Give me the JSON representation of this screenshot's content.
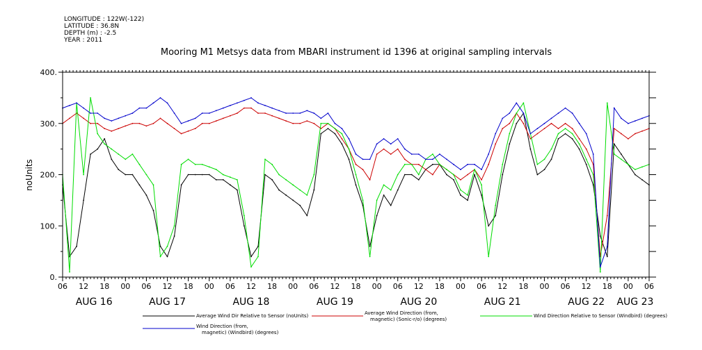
{
  "header": {
    "longitude": "LONGITUDE : 122W(-122)",
    "latitude": "LATITUDE : 36.8N",
    "depth": "DEPTH (m) : -2.5",
    "year": "YEAR : 2011"
  },
  "chart_data": {
    "type": "line",
    "title": "Mooring M1 Metsys data from MBARI instrument id 1396 at original sampling intervals",
    "ylabel": "noUnits",
    "xlabel": "",
    "ylim": [
      0,
      400
    ],
    "yticks": [
      0,
      100,
      200,
      300,
      400
    ],
    "ytick_labels": [
      "0.",
      "100.",
      "200.",
      "300.",
      "400."
    ],
    "xlim": [
      6,
      174
    ],
    "xticks": [
      6,
      12,
      18,
      24,
      30,
      36,
      42,
      48,
      54,
      60,
      66,
      72,
      78,
      84,
      90,
      96,
      102,
      108,
      114,
      120,
      126,
      132,
      138,
      144,
      150,
      156,
      162,
      168,
      174
    ],
    "xtick_labels": [
      "06",
      "12",
      "18",
      "00",
      "06",
      "12",
      "18",
      "00",
      "06",
      "12",
      "18",
      "00",
      "06",
      "12",
      "18",
      "00",
      "06",
      "12",
      "18",
      "00",
      "06",
      "12",
      "18",
      "00",
      "06",
      "12",
      "18",
      "00",
      "06"
    ],
    "day_labels": [
      {
        "x": 15,
        "label": "AUG 16"
      },
      {
        "x": 36,
        "label": "AUG 17"
      },
      {
        "x": 60,
        "label": "AUG 18"
      },
      {
        "x": 84,
        "label": "AUG 19"
      },
      {
        "x": 108,
        "label": "AUG 20"
      },
      {
        "x": 132,
        "label": "AUG 21"
      },
      {
        "x": 156,
        "label": "AUG 22"
      },
      {
        "x": 170,
        "label": "AUG 23"
      }
    ],
    "grid": false,
    "legend_position": "bottom",
    "series": [
      {
        "name": "Average Wind Dir Relative to Sensor (noUnits)",
        "color": "#000000",
        "x": [
          6,
          8,
          10,
          12,
          14,
          16,
          18,
          20,
          22,
          24,
          26,
          28,
          30,
          32,
          34,
          36,
          38,
          40,
          42,
          44,
          46,
          48,
          50,
          52,
          54,
          56,
          58,
          60,
          62,
          64,
          66,
          68,
          70,
          72,
          74,
          76,
          78,
          80,
          82,
          84,
          86,
          88,
          90,
          92,
          94,
          96,
          98,
          100,
          102,
          104,
          106,
          108,
          110,
          112,
          114,
          116,
          118,
          120,
          122,
          124,
          126,
          128,
          130,
          132,
          134,
          136,
          138,
          140,
          142,
          144,
          146,
          148,
          150,
          152,
          154,
          156,
          158,
          160,
          162,
          164,
          166,
          168,
          170,
          172,
          174
        ],
        "y": [
          180,
          40,
          60,
          150,
          240,
          250,
          270,
          230,
          210,
          200,
          200,
          180,
          160,
          130,
          60,
          40,
          80,
          180,
          200,
          200,
          200,
          200,
          190,
          190,
          180,
          170,
          100,
          40,
          60,
          200,
          190,
          170,
          160,
          150,
          140,
          120,
          170,
          280,
          290,
          280,
          260,
          230,
          180,
          140,
          60,
          120,
          160,
          140,
          170,
          200,
          200,
          190,
          210,
          220,
          220,
          200,
          190,
          160,
          150,
          200,
          160,
          100,
          120,
          200,
          260,
          300,
          320,
          250,
          200,
          210,
          230,
          270,
          280,
          270,
          250,
          220,
          180,
          80,
          40,
          260,
          240,
          220,
          200,
          190,
          180
        ]
      },
      {
        "name": "Average Wind Direction (from, magnetic) (Sonic-r/o) (degrees)",
        "color": "#cc0000",
        "x": [
          6,
          8,
          10,
          12,
          14,
          16,
          18,
          20,
          22,
          24,
          26,
          28,
          30,
          32,
          34,
          36,
          38,
          40,
          42,
          44,
          46,
          48,
          50,
          52,
          54,
          56,
          58,
          60,
          62,
          64,
          66,
          68,
          70,
          72,
          74,
          76,
          78,
          80,
          82,
          84,
          86,
          88,
          90,
          92,
          94,
          96,
          98,
          100,
          102,
          104,
          106,
          108,
          110,
          112,
          114,
          116,
          118,
          120,
          122,
          124,
          126,
          128,
          130,
          132,
          134,
          136,
          138,
          140,
          142,
          144,
          146,
          148,
          150,
          152,
          154,
          156,
          158,
          160,
          162,
          164,
          166,
          168,
          170,
          172,
          174
        ],
        "y": [
          300,
          310,
          320,
          310,
          300,
          300,
          290,
          285,
          290,
          295,
          300,
          300,
          295,
          300,
          310,
          300,
          290,
          280,
          285,
          290,
          300,
          300,
          305,
          310,
          315,
          320,
          330,
          330,
          320,
          320,
          315,
          310,
          305,
          300,
          300,
          305,
          300,
          290,
          300,
          290,
          270,
          250,
          220,
          210,
          190,
          240,
          250,
          240,
          250,
          230,
          220,
          220,
          210,
          200,
          220,
          210,
          200,
          190,
          200,
          210,
          190,
          220,
          260,
          290,
          300,
          320,
          300,
          270,
          280,
          290,
          300,
          290,
          300,
          290,
          270,
          250,
          220,
          40,
          120,
          290,
          280,
          270,
          280,
          285,
          290
        ]
      },
      {
        "name": "Wind Direction Relative to Sensor (Windbird) (degrees)",
        "color": "#00dd00",
        "x": [
          6,
          8,
          10,
          12,
          14,
          16,
          18,
          20,
          22,
          24,
          26,
          28,
          30,
          32,
          34,
          36,
          38,
          40,
          42,
          44,
          46,
          48,
          50,
          52,
          54,
          56,
          58,
          60,
          62,
          64,
          66,
          68,
          70,
          72,
          74,
          76,
          78,
          80,
          82,
          84,
          86,
          88,
          90,
          92,
          94,
          96,
          98,
          100,
          102,
          104,
          106,
          108,
          110,
          112,
          114,
          116,
          118,
          120,
          122,
          124,
          126,
          128,
          130,
          132,
          134,
          136,
          138,
          140,
          142,
          144,
          146,
          148,
          150,
          152,
          154,
          156,
          158,
          160,
          162,
          164,
          166,
          168,
          170,
          172,
          174
        ],
        "y": [
          200,
          10,
          340,
          200,
          350,
          280,
          260,
          250,
          240,
          230,
          240,
          220,
          200,
          180,
          40,
          60,
          100,
          220,
          230,
          220,
          220,
          215,
          210,
          200,
          195,
          190,
          120,
          20,
          40,
          230,
          220,
          200,
          190,
          180,
          170,
          160,
          200,
          300,
          300,
          290,
          280,
          250,
          200,
          150,
          40,
          150,
          180,
          170,
          200,
          220,
          220,
          200,
          230,
          240,
          220,
          210,
          200,
          170,
          160,
          210,
          180,
          40,
          140,
          220,
          280,
          320,
          340,
          280,
          220,
          230,
          250,
          280,
          290,
          280,
          260,
          230,
          200,
          10,
          340,
          240,
          230,
          220,
          210,
          215,
          220
        ]
      },
      {
        "name": "Wind Direction (from, magnetic) (Windbird) (degrees)",
        "color": "#0000cc",
        "x": [
          6,
          8,
          10,
          12,
          14,
          16,
          18,
          20,
          22,
          24,
          26,
          28,
          30,
          32,
          34,
          36,
          38,
          40,
          42,
          44,
          46,
          48,
          50,
          52,
          54,
          56,
          58,
          60,
          62,
          64,
          66,
          68,
          70,
          72,
          74,
          76,
          78,
          80,
          82,
          84,
          86,
          88,
          90,
          92,
          94,
          96,
          98,
          100,
          102,
          104,
          106,
          108,
          110,
          112,
          114,
          116,
          118,
          120,
          122,
          124,
          126,
          128,
          130,
          132,
          134,
          136,
          138,
          140,
          142,
          144,
          146,
          148,
          150,
          152,
          154,
          156,
          158,
          160,
          162,
          164,
          166,
          168,
          170,
          172,
          174
        ],
        "y": [
          330,
          335,
          340,
          330,
          320,
          320,
          310,
          305,
          310,
          315,
          320,
          330,
          330,
          340,
          350,
          340,
          320,
          300,
          305,
          310,
          320,
          320,
          325,
          330,
          335,
          340,
          345,
          350,
          340,
          335,
          330,
          325,
          320,
          320,
          320,
          325,
          320,
          310,
          320,
          300,
          290,
          270,
          240,
          230,
          230,
          260,
          270,
          260,
          270,
          250,
          240,
          240,
          230,
          230,
          240,
          230,
          220,
          210,
          220,
          220,
          210,
          240,
          280,
          310,
          320,
          340,
          320,
          280,
          290,
          300,
          310,
          320,
          330,
          320,
          300,
          280,
          240,
          20,
          60,
          330,
          310,
          300,
          305,
          310,
          315
        ]
      }
    ]
  }
}
